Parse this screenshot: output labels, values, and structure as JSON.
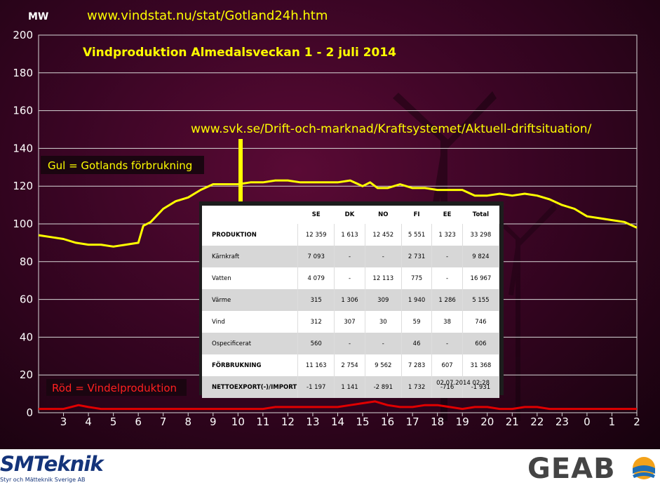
{
  "header": {
    "unit": "MW",
    "source_url": "www.vindstat.nu/stat/Gotland24h.htm",
    "title": "Vindproduktion Almedalsveckan  1 - 2 juli 2014",
    "svk_url": "www.svk.se/Drift-och-marknad/Kraftsystemet/Aktuell-driftsituation/"
  },
  "legend": {
    "yellow": "Gul = Gotlands förbrukning",
    "red": "Röd = Vindelproduktion"
  },
  "colors": {
    "consumption": "#ffff00",
    "wind": "#e00000",
    "grid": "#d8d8d8",
    "title": "#ffff00"
  },
  "chart_data": {
    "type": "line",
    "ylim": [
      0,
      200
    ],
    "yticks": [
      0,
      20,
      40,
      60,
      80,
      100,
      120,
      140,
      160,
      180,
      200
    ],
    "x_labels": [
      "3",
      "4",
      "5",
      "6",
      "7",
      "8",
      "9",
      "10",
      "11",
      "12",
      "13",
      "14",
      "15",
      "16",
      "17",
      "18",
      "19",
      "20",
      "21",
      "22",
      "23",
      "0",
      "1",
      "2"
    ],
    "x_range": [
      2,
      26
    ],
    "grid": true,
    "series": [
      {
        "name": "Gul = Gotlands förbrukning",
        "color": "#ffff00",
        "x": [
          2.0,
          2.5,
          3.0,
          3.5,
          4.0,
          4.5,
          5.0,
          5.5,
          6.0,
          6.2,
          6.5,
          7.0,
          7.5,
          8.0,
          8.5,
          9.0,
          9.5,
          10.0,
          10.5,
          11.0,
          11.5,
          12.0,
          12.5,
          13.0,
          13.5,
          14.0,
          14.5,
          15.0,
          15.3,
          15.6,
          16.0,
          16.5,
          17.0,
          17.5,
          18.0,
          18.5,
          19.0,
          19.5,
          20.0,
          20.5,
          21.0,
          21.5,
          22.0,
          22.5,
          23.0,
          23.5,
          24.0,
          24.5,
          25.0,
          25.5,
          26.0
        ],
        "y": [
          94,
          93,
          92,
          90,
          89,
          89,
          88,
          89,
          90,
          99,
          101,
          108,
          112,
          114,
          118,
          121,
          121,
          121,
          122,
          122,
          123,
          123,
          122,
          122,
          122,
          122,
          123,
          120,
          122,
          119,
          119,
          121,
          119,
          119,
          118,
          118,
          118,
          115,
          115,
          116,
          115,
          116,
          115,
          113,
          110,
          108,
          104,
          103,
          102,
          101,
          98
        ]
      },
      {
        "name": "Röd = Vindelproduktion",
        "color": "#e00000",
        "x": [
          2.0,
          2.5,
          3.0,
          3.3,
          3.6,
          4.0,
          4.5,
          5.0,
          6.0,
          7.0,
          8.0,
          9.0,
          10.0,
          11.0,
          11.5,
          12.0,
          12.5,
          13.0,
          13.5,
          14.0,
          14.5,
          15.0,
          15.5,
          16.0,
          16.5,
          17.0,
          17.5,
          18.0,
          18.5,
          19.0,
          19.5,
          20.0,
          20.5,
          21.0,
          21.5,
          22.0,
          22.5,
          23.0,
          24.0,
          25.0,
          26.0
        ],
        "y": [
          2,
          2,
          2,
          3,
          4,
          3,
          2,
          2,
          2,
          2,
          2,
          2,
          2,
          2,
          3,
          3,
          3,
          3,
          3,
          3,
          4,
          5,
          6,
          4,
          3,
          3,
          4,
          4,
          3,
          2,
          3,
          3,
          2,
          2,
          3,
          3,
          2,
          2,
          2,
          2,
          2
        ]
      }
    ]
  },
  "table": {
    "columns": [
      "",
      "SE",
      "DK",
      "NO",
      "FI",
      "EE",
      "Total"
    ],
    "rows": [
      {
        "label": "PRODUKTION",
        "bold": true,
        "values": [
          "12 359",
          "1 613",
          "12 452",
          "5 551",
          "1 323",
          "33 298"
        ]
      },
      {
        "label": "Kärnkraft",
        "bold": false,
        "values": [
          "7 093",
          "-",
          "-",
          "2 731",
          "-",
          "9 824"
        ]
      },
      {
        "label": "Vatten",
        "bold": false,
        "values": [
          "4 079",
          "-",
          "12 113",
          "775",
          "-",
          "16 967"
        ]
      },
      {
        "label": "Värme",
        "bold": false,
        "values": [
          "315",
          "1 306",
          "309",
          "1 940",
          "1 286",
          "5 155"
        ]
      },
      {
        "label": "Vind",
        "bold": false,
        "values": [
          "312",
          "307",
          "30",
          "59",
          "38",
          "746"
        ]
      },
      {
        "label": "Ospecificerat",
        "bold": false,
        "values": [
          "560",
          "-",
          "-",
          "46",
          "-",
          "606"
        ]
      },
      {
        "label": "FÖRBRUKNING",
        "bold": true,
        "values": [
          "11 163",
          "2 754",
          "9 562",
          "7 283",
          "607",
          "31 368"
        ]
      },
      {
        "label": "NETTOEXPORT(-)/IMPORT",
        "bold": true,
        "values": [
          "-1 197",
          "1 141",
          "-2 891",
          "1 732",
          "-716",
          "-1 931"
        ]
      }
    ],
    "timestamp": "02.07.2014 02:28"
  },
  "footer": {
    "smt_logo": "SMTeknik",
    "smt_sub": "Styr och Mätteknik Sverige AB",
    "geab_logo": "GEAB"
  }
}
